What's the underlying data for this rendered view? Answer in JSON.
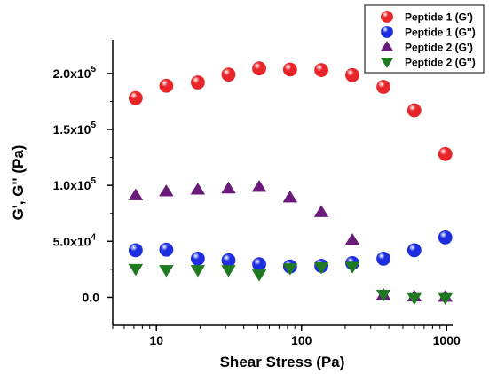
{
  "chart_data": {
    "type": "scatter",
    "title": "",
    "xlabel": "Shear Stress (Pa)",
    "ylabel": "G', G'' (Pa)",
    "x_scale": "log",
    "xlim": [
      5,
      1100
    ],
    "ylim": [
      -25000,
      230000
    ],
    "x_ticks": [
      {
        "value": 10,
        "label": "10"
      },
      {
        "value": 100,
        "label": "100"
      },
      {
        "value": 1000,
        "label": "1000"
      }
    ],
    "y_ticks": [
      {
        "value": 0,
        "mant": "0.0",
        "exp": ""
      },
      {
        "value": 50000,
        "mant": "5.0x10",
        "exp": "4"
      },
      {
        "value": 100000,
        "mant": "1.0x10",
        "exp": "5"
      },
      {
        "value": 150000,
        "mant": "1.5x10",
        "exp": "5"
      },
      {
        "value": 200000,
        "mant": "2.0x10",
        "exp": "5"
      }
    ],
    "legend_position": "top-right",
    "grid": false,
    "series": [
      {
        "name": "Peptide 1 (G')",
        "marker": "circle",
        "color": "#e8262a",
        "x": [
          7.2,
          11.7,
          19.3,
          31.4,
          51.1,
          83.4,
          137,
          224,
          367,
          599,
          979
        ],
        "y": [
          178000,
          189000,
          192000,
          199000,
          204500,
          203500,
          203000,
          198500,
          188000,
          167000,
          128000
        ]
      },
      {
        "name": "Peptide 1 (G'')",
        "marker": "circle",
        "color": "#1c2ee0",
        "x": [
          7.2,
          11.7,
          19.3,
          31.4,
          51.1,
          83.4,
          137,
          224,
          367,
          599,
          979
        ],
        "y": [
          42000,
          42500,
          34500,
          33000,
          29500,
          27500,
          28000,
          30500,
          34500,
          42000,
          53500
        ]
      },
      {
        "name": "Peptide 2 (G')",
        "marker": "triangle-up",
        "color": "#6a1b7a",
        "x": [
          7.2,
          11.7,
          19.3,
          31.4,
          51.1,
          83.4,
          137,
          224,
          367,
          599,
          979
        ],
        "y": [
          91000,
          94500,
          96000,
          97000,
          98500,
          89000,
          76000,
          51000,
          2000,
          500,
          300
        ]
      },
      {
        "name": "Peptide 2 (G'')",
        "marker": "triangle-down",
        "color": "#1f7a1f",
        "x": [
          7.2,
          11.7,
          19.3,
          31.4,
          51.1,
          83.4,
          137,
          224,
          367,
          599,
          979
        ],
        "y": [
          25500,
          24500,
          24500,
          24500,
          20500,
          26000,
          27000,
          27500,
          2500,
          -500,
          -500
        ]
      }
    ]
  }
}
